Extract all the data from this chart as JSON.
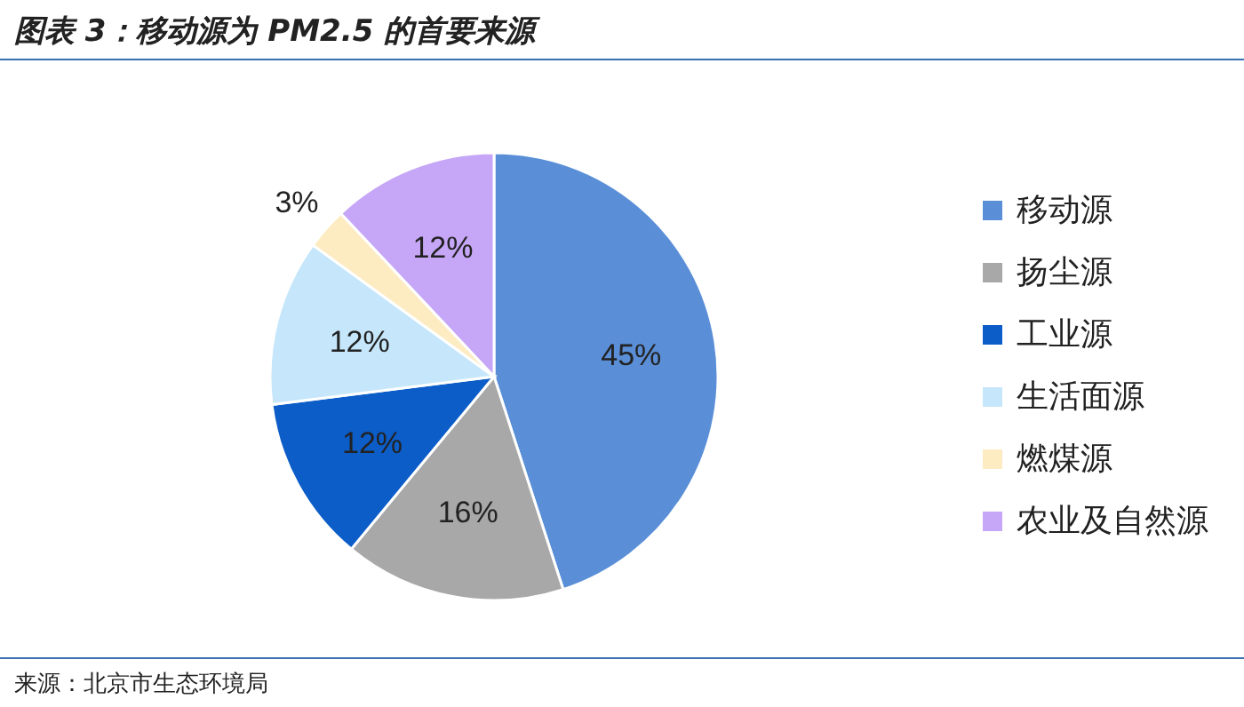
{
  "chart_data": {
    "type": "pie",
    "title": "图表 3：移动源为 PM2.5 的首要来源",
    "categories": [
      "移动源",
      "扬尘源",
      "工业源",
      "生活面源",
      "燃煤源",
      "农业及自然源"
    ],
    "values": [
      45,
      16,
      12,
      12,
      3,
      12
    ],
    "value_labels": [
      "45%",
      "16%",
      "12%",
      "12%",
      "3%",
      "12%"
    ],
    "colors": [
      "#5a8fd8",
      "#a8a8a8",
      "#0c5dc8",
      "#c6e7fb",
      "#fdebc2",
      "#c6a6f6"
    ],
    "legend": "right",
    "annotations": [
      "来源：北京市生态环境局"
    ]
  }
}
